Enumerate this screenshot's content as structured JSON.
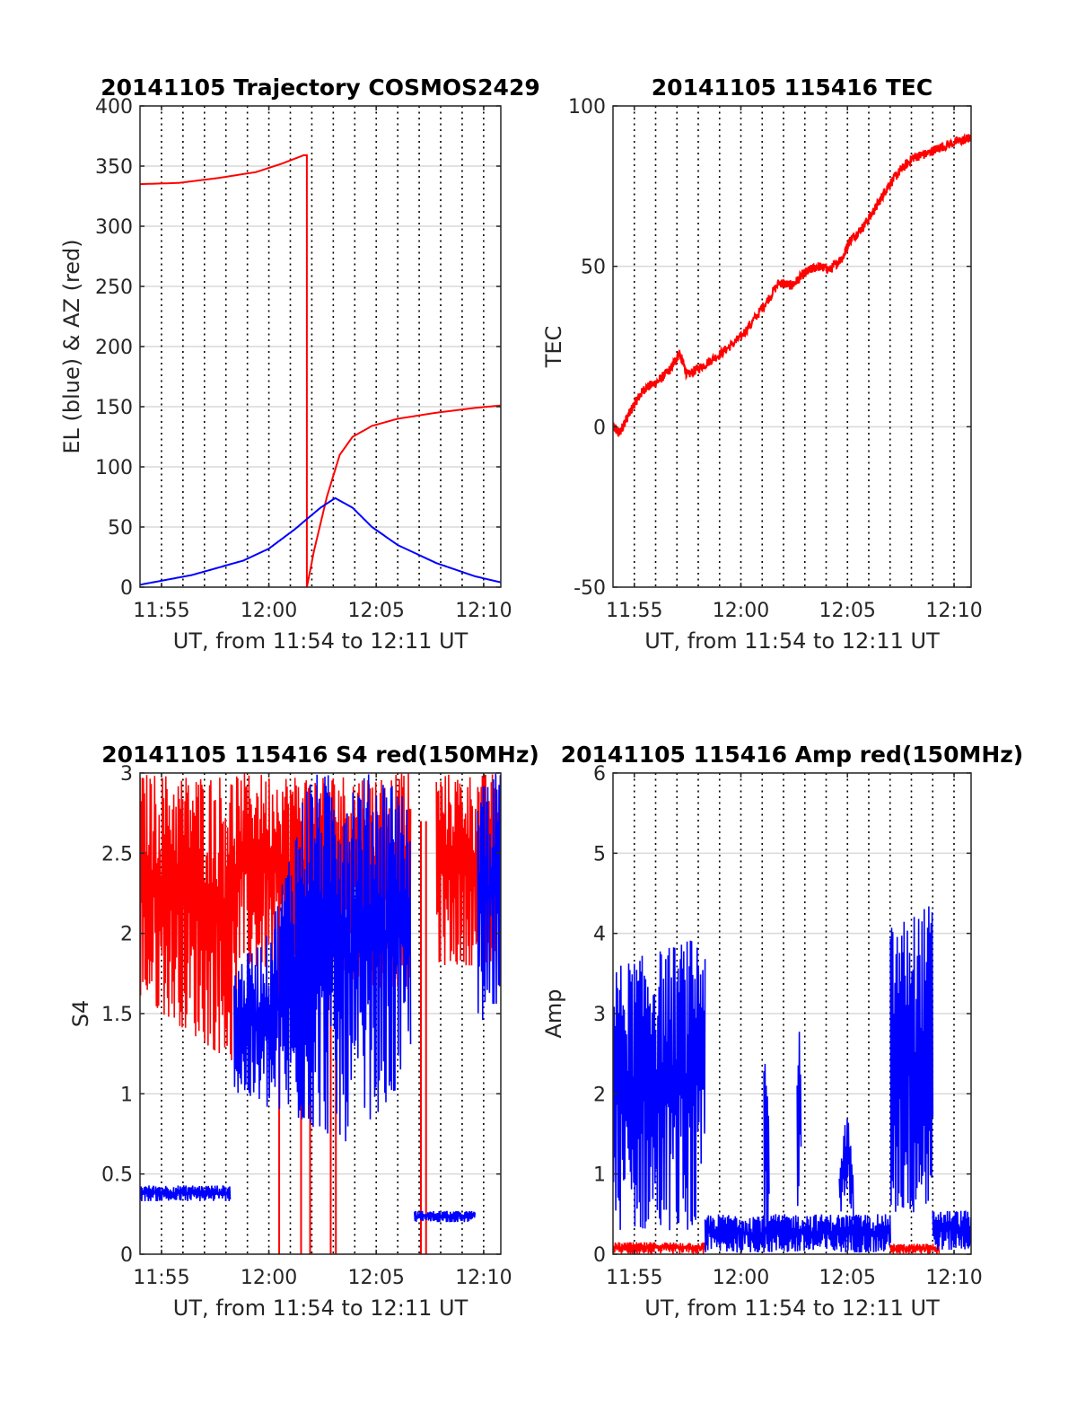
{
  "colors": {
    "el": "#0000ff",
    "az": "#ff0000",
    "grid": "#d9d9d9",
    "dotted": "#000000"
  },
  "chart_data": [
    {
      "type": "line",
      "title": "20141105 Trajectory COSMOS2429",
      "xlabel": "UT, from 11:54 to 12:11 UT",
      "ylabel": "EL (blue) & AZ (red)",
      "xlim": [
        11.9,
        12.18
      ],
      "ylim": [
        0,
        400
      ],
      "xticks": [
        11.9167,
        12.0,
        12.0833,
        12.1667
      ],
      "xtick_labels": [
        "11:55",
        "12:00",
        "12:05",
        "12:10"
      ],
      "yticks": [
        0,
        50,
        100,
        150,
        200,
        250,
        300,
        350,
        400
      ],
      "ytick_labels": [
        "0",
        "50",
        "100",
        "150",
        "200",
        "250",
        "300",
        "350",
        "400"
      ],
      "grid": true,
      "series": [
        {
          "color": "#ff0000",
          "x": [
            11.9,
            11.93,
            11.96,
            11.99,
            12.01,
            12.027,
            12.0295,
            12.0295,
            12.035,
            12.045,
            12.055,
            12.065,
            12.08,
            12.1,
            12.13,
            12.16,
            12.18
          ],
          "y": [
            335,
            336,
            340,
            345,
            352,
            359,
            359,
            0,
            30,
            75,
            110,
            125,
            134,
            140,
            145,
            149,
            151
          ]
        },
        {
          "color": "#0000ff",
          "x": [
            11.9,
            11.94,
            11.98,
            12.0,
            12.02,
            12.04,
            12.0515,
            12.065,
            12.08,
            12.1,
            12.13,
            12.16,
            12.18
          ],
          "y": [
            2,
            10,
            22,
            32,
            48,
            66,
            74,
            66,
            50,
            35,
            20,
            9,
            4
          ]
        }
      ]
    },
    {
      "type": "line",
      "title": "20141105 115416 TEC",
      "xlabel": "UT, from 11:54 to 12:11 UT",
      "ylabel": "TEC",
      "xlim": [
        11.9,
        12.18
      ],
      "ylim": [
        -50,
        100
      ],
      "xticks": [
        11.9167,
        12.0,
        12.0833,
        12.1667
      ],
      "xtick_labels": [
        "11:55",
        "12:00",
        "12:05",
        "12:10"
      ],
      "yticks": [
        -50,
        0,
        50,
        100
      ],
      "ytick_labels": [
        "-50",
        "0",
        "50",
        "100"
      ],
      "grid": true,
      "series": [
        {
          "color": "#ff0000",
          "x": [
            11.9,
            11.905,
            11.91,
            11.918,
            11.925,
            11.935,
            11.945,
            11.952,
            11.958,
            11.97,
            11.985,
            12.0,
            12.015,
            12.03,
            12.04,
            12.05,
            12.06,
            12.07,
            12.08,
            12.085,
            12.095,
            12.105,
            12.115,
            12.125,
            12.135,
            12.145,
            12.155,
            12.17,
            12.18
          ],
          "y": [
            0,
            -2,
            2,
            8,
            12,
            14,
            18,
            23,
            16,
            19,
            23,
            28,
            36,
            45,
            44,
            48,
            50,
            49,
            53,
            58,
            62,
            68,
            75,
            80,
            84,
            85,
            87,
            89,
            90
          ]
        }
      ]
    },
    {
      "type": "line",
      "title": "20141105 115416 S4 red(150MHz)",
      "xlabel": "UT, from 11:54 to 12:11 UT",
      "ylabel": "S4",
      "xlim": [
        11.9,
        12.18
      ],
      "ylim": [
        0,
        3
      ],
      "xticks": [
        11.9167,
        12.0,
        12.0833,
        12.1667
      ],
      "xtick_labels": [
        "11:55",
        "12:00",
        "12:05",
        "12:10"
      ],
      "yticks": [
        0,
        0.5,
        1,
        1.5,
        2,
        2.5,
        3
      ],
      "ytick_labels": [
        "0",
        "0.5",
        "1",
        "1.5",
        "2",
        "2.5",
        "3"
      ],
      "grid": true,
      "series": [
        {
          "color": "#ff0000",
          "segments": [
            {
              "x": [
                11.9,
                11.97,
                11.975
              ],
              "lo": [
                1.6,
                1.2,
                1.2
              ],
              "hi": [
                3.0,
                3.0,
                3.0
              ]
            },
            {
              "x": [
                11.975,
                12.11
              ],
              "lo": [
                1.8,
                1.6
              ],
              "hi": [
                3.0,
                3.0
              ]
            },
            {
              "x": [
                12.13,
                12.18
              ],
              "lo": [
                1.8,
                1.8
              ],
              "hi": [
                3.0,
                3.0
              ]
            }
          ],
          "spikes": [
            12.008,
            12.025,
            12.032,
            12.048,
            12.052,
            12.118,
            12.122
          ]
        },
        {
          "color": "#0000ff",
          "segments": [
            {
              "x": [
                11.9,
                11.97
              ],
              "lo": [
                0.33,
                0.33
              ],
              "hi": [
                0.43,
                0.43
              ]
            },
            {
              "x": [
                11.973,
                12.0,
                12.03,
                12.06,
                12.1,
                12.11
              ],
              "lo": [
                1.0,
                0.9,
                0.8,
                0.7,
                1.0,
                1.3
              ],
              "hi": [
                1.8,
                2.0,
                3.0,
                3.0,
                3.0,
                2.7
              ]
            },
            {
              "x": [
                12.113,
                12.16
              ],
              "lo": [
                0.2,
                0.2
              ],
              "hi": [
                0.27,
                0.27
              ]
            },
            {
              "x": [
                12.162,
                12.18
              ],
              "lo": [
                1.4,
                1.6
              ],
              "hi": [
                3.0,
                3.0
              ]
            }
          ],
          "spikes": []
        }
      ]
    },
    {
      "type": "line",
      "title": "20141105 115416 Amp red(150MHz)",
      "xlabel": "UT, from 11:54 to 12:11 UT",
      "ylabel": "Amp",
      "xlim": [
        11.9,
        12.18
      ],
      "ylim": [
        0,
        6
      ],
      "xticks": [
        11.9167,
        12.0,
        12.0833,
        12.1667
      ],
      "xtick_labels": [
        "11:55",
        "12:00",
        "12:05",
        "12:10"
      ],
      "yticks": [
        0,
        1,
        2,
        3,
        4,
        5,
        6
      ],
      "ytick_labels": [
        "0",
        "1",
        "2",
        "3",
        "4",
        "5",
        "6"
      ],
      "grid": true,
      "series": [
        {
          "color": "#ff0000",
          "segments": [
            {
              "x": [
                11.9,
                11.972
              ],
              "lo": [
                0.0,
                0.0
              ],
              "hi": [
                0.15,
                0.15
              ]
            },
            {
              "x": [
                12.117,
                12.155
              ],
              "lo": [
                0.0,
                0.0
              ],
              "hi": [
                0.13,
                0.13
              ]
            }
          ],
          "spikes": []
        },
        {
          "color": "#0000ff",
          "segments": [
            {
              "x": [
                11.9,
                11.972
              ],
              "lo": [
                0.3,
                0.3
              ],
              "hi": [
                3.6,
                4.0
              ]
            },
            {
              "x": [
                11.972,
                12.117
              ],
              "lo": [
                0.02,
                0.02
              ],
              "hi": [
                0.5,
                0.5
              ]
            },
            {
              "x": [
                12.018,
                12.022
              ],
              "lo": [
                0.3,
                0.3
              ],
              "hi": [
                2.4,
                2.4
              ]
            },
            {
              "x": [
                12.044,
                12.047
              ],
              "lo": [
                0.4,
                0.4
              ],
              "hi": [
                2.9,
                2.9
              ]
            },
            {
              "x": [
                12.077,
                12.083,
                12.088
              ],
              "lo": [
                0.4,
                0.8,
                0.4
              ],
              "hi": [
                1.0,
                1.85,
                1.0
              ]
            },
            {
              "x": [
                12.117,
                12.15
              ],
              "lo": [
                0.5,
                0.5
              ],
              "hi": [
                4.1,
                4.4
              ]
            },
            {
              "x": [
                12.15,
                12.18
              ],
              "lo": [
                0.05,
                0.05
              ],
              "hi": [
                0.55,
                0.55
              ]
            }
          ],
          "spikes": []
        }
      ]
    }
  ]
}
